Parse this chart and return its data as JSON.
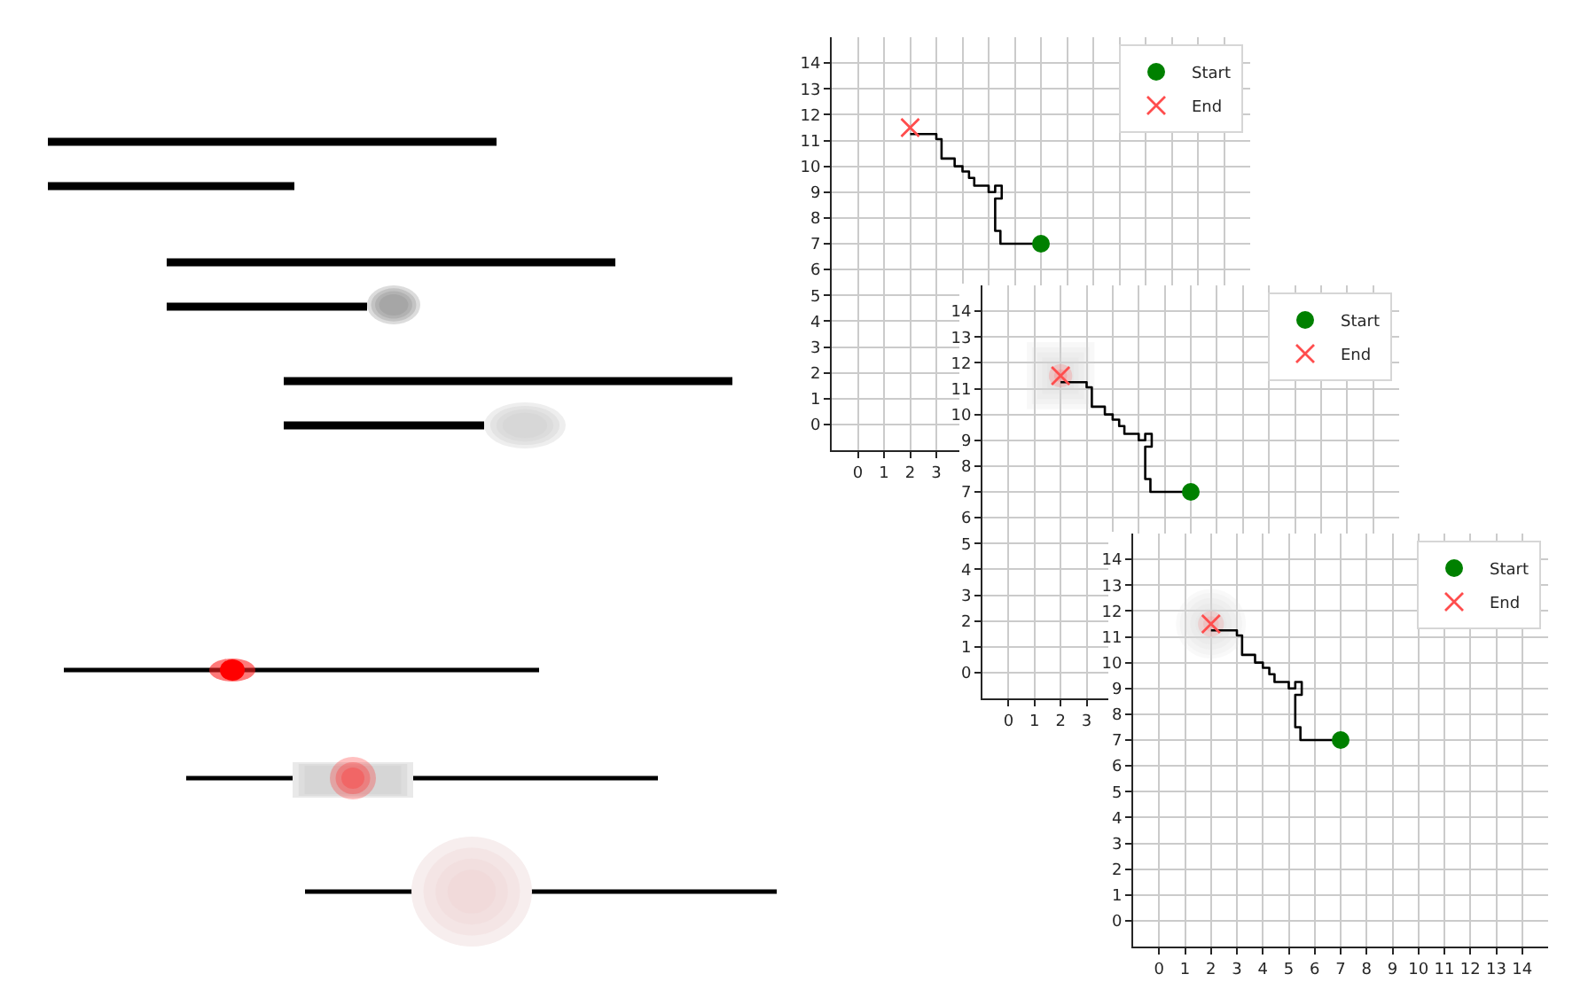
{
  "chart_data": [
    {
      "type": "line",
      "series": [
        {
          "color": "#000000",
          "line_style": "solid",
          "x": [
            2,
            3,
            3,
            3.2,
            3.2,
            3.7,
            3.7,
            4,
            4,
            4.25,
            4.25,
            4.45,
            4.45,
            5,
            5,
            5.25,
            5.25,
            5.5,
            5.5,
            5.25,
            5.25,
            5.45,
            5.45,
            7
          ],
          "values": [
            11.25,
            11.25,
            11.05,
            11.05,
            10.3,
            10.3,
            10,
            10,
            9.8,
            9.8,
            9.55,
            9.55,
            9.25,
            9.25,
            9,
            9,
            9.25,
            9.25,
            8.75,
            8.75,
            7.5,
            7.5,
            7,
            7
          ]
        },
        {
          "type": "scatter",
          "name": "Start",
          "color": "#008000",
          "marker": "circle",
          "x": [
            7
          ],
          "values": [
            7
          ]
        },
        {
          "type": "scatter",
          "name": "End",
          "color": "#ff4d4d",
          "marker": "cross",
          "x": [
            2
          ],
          "values": [
            11.5
          ]
        }
      ],
      "xlim": [
        -1,
        15
      ],
      "ylim": [
        -1,
        15
      ],
      "xticks": [
        0,
        1,
        2,
        3,
        {
          "value": 4,
          "label": null
        },
        {
          "value": 5,
          "label": null
        },
        {
          "value": 6,
          "label": null
        },
        {
          "value": 7,
          "label": null
        },
        {
          "value": 8,
          "label": null
        },
        {
          "value": 9,
          "label": null
        },
        {
          "value": 10,
          "label": null
        },
        {
          "value": 11,
          "label": null
        },
        {
          "value": 12,
          "label": null
        },
        {
          "value": 13,
          "label": null
        },
        {
          "value": 14,
          "label": null
        }
      ],
      "yticks": [
        0,
        1,
        2,
        3,
        4,
        5,
        6,
        7,
        8,
        9,
        10,
        11,
        12,
        13,
        14
      ],
      "grid": true,
      "legend": "top right"
    },
    {
      "type": "line",
      "series": [
        {
          "color": "#000000",
          "line_style": "solid",
          "x": [
            2,
            3,
            3,
            3.2,
            3.2,
            3.7,
            3.7,
            4,
            4,
            4.25,
            4.25,
            4.45,
            4.45,
            5,
            5,
            5.25,
            5.25,
            5.5,
            5.5,
            5.25,
            5.25,
            5.45,
            5.45,
            7
          ],
          "values": [
            11.25,
            11.25,
            11.05,
            11.05,
            10.3,
            10.3,
            10,
            10,
            9.8,
            9.8,
            9.55,
            9.55,
            9.25,
            9.25,
            9,
            9,
            9.25,
            9.25,
            8.75,
            8.75,
            7.5,
            7.5,
            7,
            7
          ]
        },
        {
          "type": "scatter",
          "name": "Start",
          "color": "#008000",
          "marker": "circle",
          "x": [
            7
          ],
          "values": [
            7
          ]
        },
        {
          "type": "scatter",
          "name": "End",
          "color": "#ff4d4d",
          "marker": "cross",
          "x": [
            2
          ],
          "values": [
            11.5
          ]
        }
      ],
      "xlim": [
        -1,
        15
      ],
      "ylim": [
        -1,
        15
      ],
      "xticks": [
        0,
        1,
        2,
        3,
        {
          "value": 4,
          "label": null
        },
        {
          "value": 5,
          "label": null
        },
        {
          "value": 6,
          "label": null
        },
        {
          "value": 7,
          "label": null
        },
        {
          "value": 8,
          "label": null
        },
        {
          "value": 9,
          "label": null
        },
        {
          "value": 10,
          "label": null
        },
        {
          "value": 11,
          "label": null
        },
        {
          "value": 12,
          "label": null
        },
        {
          "value": 13,
          "label": null
        },
        {
          "value": 14,
          "label": null
        }
      ],
      "yticks": [
        0,
        1,
        2,
        3,
        4,
        5,
        6,
        7,
        8,
        9,
        10,
        11,
        12,
        13,
        14
      ],
      "grid": true,
      "legend": "top right"
    },
    {
      "type": "line",
      "series": [
        {
          "color": "#000000",
          "line_style": "solid",
          "x": [
            2,
            3,
            3,
            3.2,
            3.2,
            3.7,
            3.7,
            4,
            4,
            4.25,
            4.25,
            4.45,
            4.45,
            5,
            5,
            5.25,
            5.25,
            5.5,
            5.5,
            5.25,
            5.25,
            5.45,
            5.45,
            7
          ],
          "values": [
            11.25,
            11.25,
            11.05,
            11.05,
            10.3,
            10.3,
            10,
            10,
            9.8,
            9.8,
            9.55,
            9.55,
            9.25,
            9.25,
            9,
            9,
            9.25,
            9.25,
            8.75,
            8.75,
            7.5,
            7.5,
            7,
            7
          ]
        },
        {
          "type": "scatter",
          "name": "Start",
          "color": "#008000",
          "marker": "circle",
          "x": [
            7
          ],
          "values": [
            7
          ]
        },
        {
          "type": "scatter",
          "name": "End",
          "color": "#ff4d4d",
          "marker": "cross",
          "x": [
            2
          ],
          "values": [
            11.5
          ]
        }
      ],
      "xlim": [
        -1,
        15
      ],
      "ylim": [
        -1,
        15
      ],
      "xticks": [
        0,
        1,
        2,
        3,
        4,
        5,
        6,
        7,
        8,
        9,
        10,
        11,
        12,
        13,
        14
      ],
      "yticks": [
        0,
        1,
        2,
        3,
        4,
        5,
        6,
        7,
        8,
        9,
        10,
        11,
        12,
        13,
        14
      ],
      "grid": true,
      "legend": "top right"
    }
  ]
}
